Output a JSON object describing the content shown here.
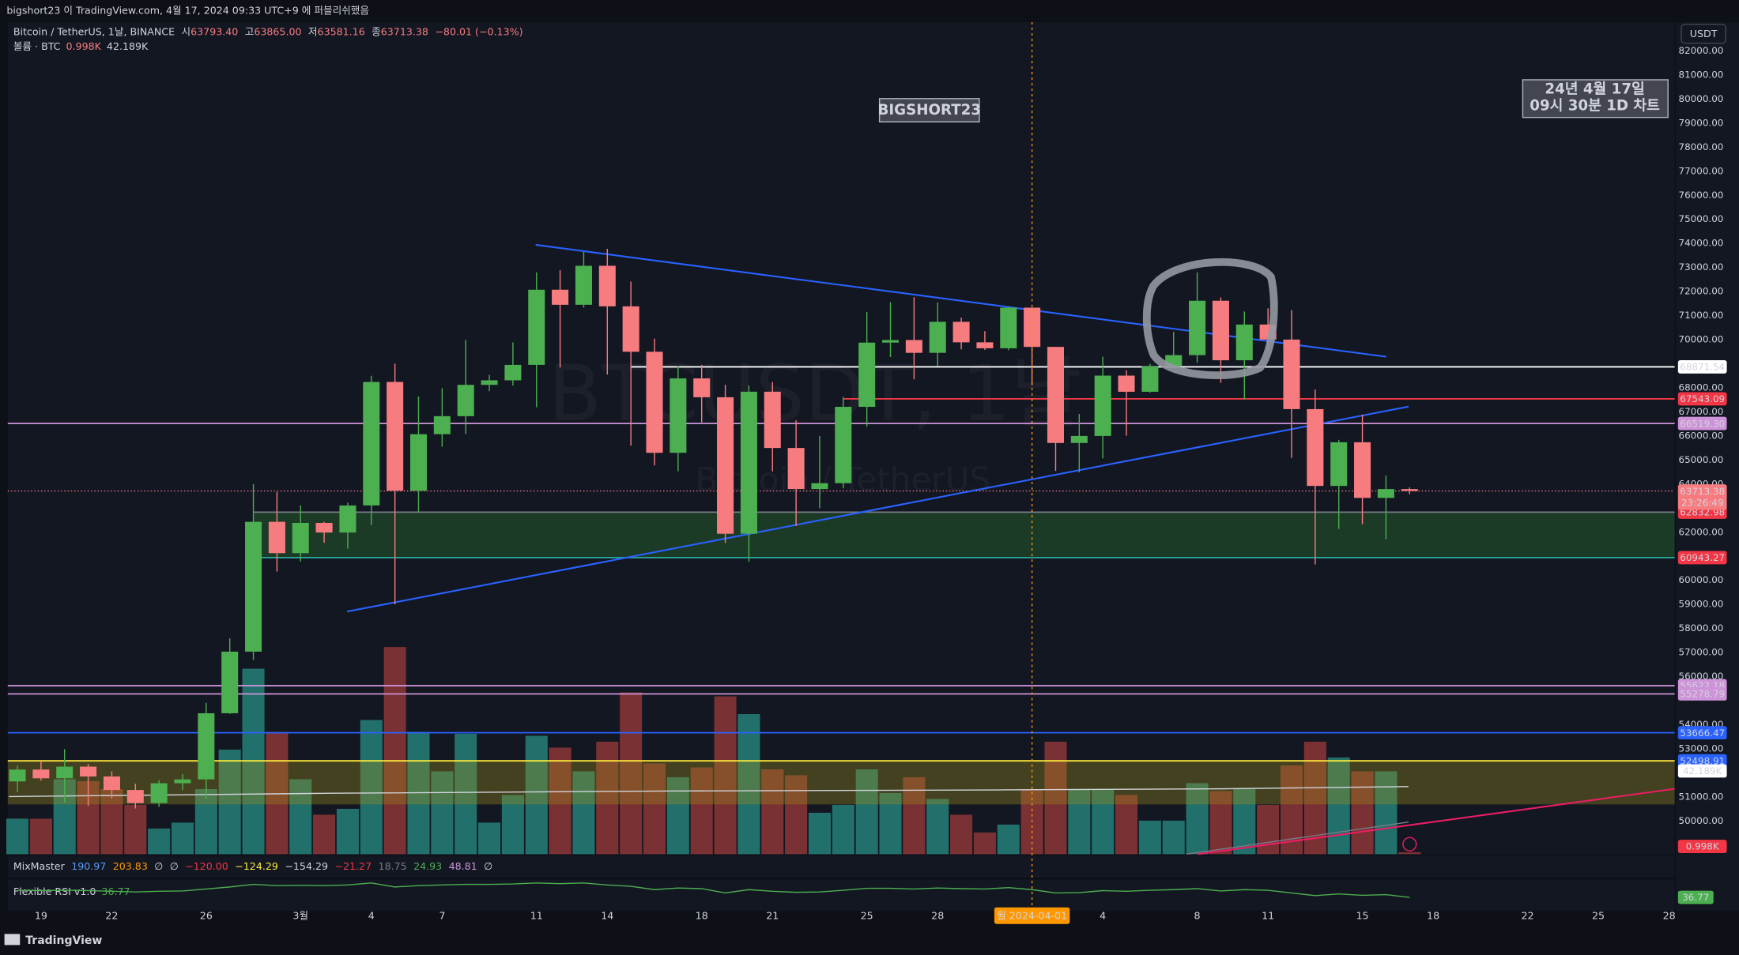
{
  "chart_data": {
    "type": "candlestick",
    "header": "bigshort23 이 TradingView.com, 4월 17, 2024 09:33 UTC+9 에 퍼블리쉬했음",
    "title": "Bitcoin / TetherUS, 1날, BINANCE",
    "ohlc_legend": [
      {
        "label": "시",
        "value": "63793.40"
      },
      {
        "label": "고",
        "value": "63865.00"
      },
      {
        "label": "저",
        "value": "63581.16"
      },
      {
        "label": "종",
        "value": "63713.38"
      }
    ],
    "change": "−80.01 (−0.13%)",
    "volume_legend": {
      "label": "볼륨 · BTC",
      "value": "0.998K",
      "ma": "42.189K"
    },
    "watermark": {
      "symbol": "BTCUSDT, 1날",
      "name": "Bitcoin / TetherUS"
    },
    "annotations": [
      "BIGSHORT23",
      "24년 4월 17일",
      "09시 30분 1D 차트"
    ],
    "currency_button": "USDT",
    "footer": "TradingView",
    "up_color": "#4caf50",
    "down_color": "#f77c80",
    "volume_up_color": "#22706b",
    "volume_down_color": "#7a3134",
    "x": [
      "2024-02-18",
      "2024-02-19",
      "2024-02-20",
      "2024-02-21",
      "2024-02-22",
      "2024-02-23",
      "2024-02-24",
      "2024-02-25",
      "2024-02-26",
      "2024-02-27",
      "2024-02-28",
      "2024-02-29",
      "2024-03-01",
      "2024-03-02",
      "2024-03-03",
      "2024-03-04",
      "2024-03-05",
      "2024-03-06",
      "2024-03-07",
      "2024-03-08",
      "2024-03-09",
      "2024-03-10",
      "2024-03-11",
      "2024-03-12",
      "2024-03-13",
      "2024-03-14",
      "2024-03-15",
      "2024-03-16",
      "2024-03-17",
      "2024-03-18",
      "2024-03-19",
      "2024-03-20",
      "2024-03-21",
      "2024-03-22",
      "2024-03-23",
      "2024-03-24",
      "2024-03-25",
      "2024-03-26",
      "2024-03-27",
      "2024-03-28",
      "2024-03-29",
      "2024-03-30",
      "2024-03-31",
      "2024-04-01",
      "2024-04-02",
      "2024-04-03",
      "2024-04-04",
      "2024-04-05",
      "2024-04-06",
      "2024-04-07",
      "2024-04-08",
      "2024-04-09",
      "2024-04-10",
      "2024-04-11",
      "2024-04-12",
      "2024-04-13",
      "2024-04-14",
      "2024-04-15",
      "2024-04-16",
      "2024-04-17"
    ],
    "open": [
      51643,
      52137,
      51774,
      52258,
      51849,
      51288,
      50744,
      51568,
      51728,
      54476,
      57037,
      62432,
      61130,
      62387,
      61987,
      63113,
      68245,
      63724,
      66074,
      66823,
      68124,
      68313,
      68955,
      72078,
      71452,
      73072,
      71388,
      69499,
      65300,
      68393,
      67609,
      61937,
      67840,
      65501,
      63796,
      64037,
      67211,
      69880,
      69987,
      69455,
      70744,
      69892,
      69645,
      71333,
      69702,
      65709,
      66000,
      68508,
      67837,
      68896,
      69360,
      71620,
      69146,
      70631,
      70006,
      67116,
      63924,
      65738,
      63426,
      63793.4
    ],
    "high": [
      52297,
      52488,
      52985,
      52371,
      52065,
      51548,
      51698,
      51950,
      54910,
      57588,
      64000,
      63676,
      63114,
      62433,
      63231,
      68499,
      69000,
      67637,
      67985,
      69990,
      68541,
      69887,
      72800,
      72890,
      73650,
      73777,
      72419,
      70043,
      68904,
      68956,
      68124,
      68100,
      68240,
      66650,
      65999,
      67622,
      71150,
      71561,
      71769,
      71552,
      70916,
      70355,
      71366,
      71342,
      69708,
      66914,
      69291,
      68725,
      69000,
      70326,
      72797,
      71758,
      71172,
      71305,
      71227,
      67932,
      65840,
      66878,
      64355,
      63865
    ],
    "low": [
      51200,
      51677,
      50760,
      50625,
      50940,
      50521,
      50585,
      51281,
      50901,
      54450,
      56691,
      60364,
      60777,
      61561,
      61320,
      62300,
      59005,
      62848,
      65551,
      66082,
      67861,
      68094,
      67194,
      68845,
      71334,
      68555,
      65600,
      64780,
      64533,
      66565,
      61555,
      60775,
      64529,
      62260,
      63000,
      63825,
      66385,
      69280,
      68359,
      68903,
      69601,
      69577,
      69562,
      68110,
      64550,
      64493,
      65064,
      66011,
      67800,
      68824,
      69043,
      68210,
      67518,
      69567,
      65086,
      60660,
      62134,
      62332,
      61716,
      63581.16
    ],
    "close": [
      52137,
      51774,
      52258,
      51849,
      51288,
      50744,
      51568,
      51728,
      54476,
      57037,
      62432,
      61130,
      62387,
      61987,
      63113,
      68245,
      63724,
      66074,
      66823,
      68124,
      68313,
      68955,
      72078,
      71452,
      73072,
      71388,
      69499,
      65300,
      68393,
      67609,
      61937,
      67840,
      65501,
      63796,
      64037,
      67211,
      69880,
      69987,
      69455,
      70744,
      69892,
      69645,
      71333,
      69702,
      65709,
      66000,
      68508,
      67837,
      68896,
      69360,
      71620,
      69146,
      70631,
      70006,
      67116,
      63924,
      65738,
      63426,
      63793.4,
      63713.38
    ],
    "volume": [
      18,
      18,
      38,
      37,
      33,
      25,
      13,
      16,
      33,
      53,
      94,
      62,
      38,
      20,
      23,
      68,
      105,
      62,
      42,
      61,
      16,
      30,
      60,
      54,
      42,
      57,
      82,
      46,
      39,
      44,
      80,
      71,
      43,
      40,
      21,
      25,
      43,
      31,
      39,
      28,
      20,
      11,
      15,
      33,
      57,
      33,
      33,
      30,
      17,
      17,
      36,
      32,
      33,
      25,
      45,
      57,
      49,
      42,
      42,
      0.998
    ],
    "volume_last_label": "0.998K",
    "volume_ma": {
      "value": 42.189,
      "label": "42.189K"
    },
    "rsi": [
      58,
      57,
      58,
      57,
      55,
      53,
      55,
      56,
      62,
      68,
      76,
      72,
      73,
      72,
      74,
      80,
      68,
      72,
      74,
      76,
      76,
      77,
      80,
      78,
      80,
      74,
      70,
      60,
      65,
      63,
      50,
      60,
      55,
      52,
      53,
      58,
      64,
      64,
      62,
      65,
      63,
      62,
      66,
      60,
      50,
      51,
      57,
      55,
      58,
      60,
      63,
      56,
      60,
      58,
      50,
      42,
      47,
      43,
      45,
      36.77
    ],
    "rsi_label": "36.77",
    "rsi_ylim": [
      0,
      100
    ],
    "rsi_color": "#4caf50",
    "mixmaster": {
      "name": "MixMaster",
      "values": [
        "190.97",
        "203.83",
        "∅",
        "∅",
        "−120.00",
        "−124.29",
        "−154.29",
        "−21.27",
        "18.75",
        "24.93",
        "48.81",
        "∅"
      ],
      "colors": [
        "#5b9cf6",
        "#ff9800",
        "#d1d4dc",
        "#d1d4dc",
        "#f23645",
        "#ffeb3b",
        "#d1d4dc",
        "#f23645",
        "#787b86",
        "#4caf50",
        "#ce93d8",
        "#d1d4dc"
      ]
    },
    "rsi_name": "Flexible RSI v1.0",
    "xlim": [
      "2024-02-18",
      "2024-04-28"
    ],
    "xticks": [
      {
        "value": "2024-02-19",
        "label": "19"
      },
      {
        "value": "2024-02-22",
        "label": "22"
      },
      {
        "value": "2024-02-26",
        "label": "26"
      },
      {
        "value": "2024-03-01",
        "label": "3월"
      },
      {
        "value": "2024-03-04",
        "label": "4"
      },
      {
        "value": "2024-03-07",
        "label": "7"
      },
      {
        "value": "2024-03-11",
        "label": "11"
      },
      {
        "value": "2024-03-14",
        "label": "14"
      },
      {
        "value": "2024-03-18",
        "label": "18"
      },
      {
        "value": "2024-03-21",
        "label": "21"
      },
      {
        "value": "2024-03-25",
        "label": "25"
      },
      {
        "value": "2024-03-28",
        "label": "28"
      },
      {
        "value": "2024-04-04",
        "label": "4"
      },
      {
        "value": "2024-04-08",
        "label": "8"
      },
      {
        "value": "2024-04-11",
        "label": "11"
      },
      {
        "value": "2024-04-15",
        "label": "15"
      },
      {
        "value": "2024-04-18",
        "label": "18"
      },
      {
        "value": "2024-04-22",
        "label": "22"
      },
      {
        "value": "2024-04-25",
        "label": "25"
      },
      {
        "value": "2024-04-28",
        "label": "28"
      }
    ],
    "crosshair": {
      "x": "2024-04-01",
      "label": "월 2024-04-01"
    },
    "ylim": [
      48620,
      83197
    ],
    "yticks": [
      {
        "value": 82000,
        "label": "82000.00"
      },
      {
        "value": 81000,
        "label": "81000.00"
      },
      {
        "value": 80000,
        "label": "80000.00"
      },
      {
        "value": 79000,
        "label": "79000.00"
      },
      {
        "value": 78000,
        "label": "78000.00"
      },
      {
        "value": 77000,
        "label": "77000.00"
      },
      {
        "value": 76000,
        "label": "76000.00"
      },
      {
        "value": 75000,
        "label": "75000.00"
      },
      {
        "value": 74000,
        "label": "74000.00"
      },
      {
        "value": 73000,
        "label": "73000.00"
      },
      {
        "value": 72000,
        "label": "72000.00"
      },
      {
        "value": 71000,
        "label": "71000.00"
      },
      {
        "value": 70000,
        "label": "70000.00"
      },
      {
        "value": 68000,
        "label": "68000.00"
      },
      {
        "value": 67000,
        "label": "67000.00"
      },
      {
        "value": 66000,
        "label": "66000.00"
      },
      {
        "value": 65000,
        "label": "65000.00"
      },
      {
        "value": 64000,
        "label": "64000.00"
      },
      {
        "value": 62000,
        "label": "62000.00"
      },
      {
        "value": 60000,
        "label": "60000.00"
      },
      {
        "value": 59000,
        "label": "59000.00"
      },
      {
        "value": 58000,
        "label": "58000.00"
      },
      {
        "value": 57000,
        "label": "57000.00"
      },
      {
        "value": 56000,
        "label": "56000.00"
      },
      {
        "value": 54000,
        "label": "54000.00"
      },
      {
        "value": 53000,
        "label": "53000.00"
      },
      {
        "value": 52000,
        "label": "52000.00"
      },
      {
        "value": 51000,
        "label": "51000.00"
      },
      {
        "value": 50000,
        "label": "50000.00"
      }
    ],
    "zones": [
      {
        "high": 62832.98,
        "low": 60943.27,
        "from": "2024-02-28",
        "color": "#2e7d32"
      },
      {
        "high": 52498.91,
        "low": 50690,
        "color": "#9e8f1a"
      }
    ],
    "price_lines": [
      {
        "value": 68871.54,
        "label": "68871.54",
        "color": "#ffffff",
        "badge": "#ffffff",
        "from": "2024-03-15"
      },
      {
        "value": 67543.09,
        "label": "67543.09",
        "color": "#f23645",
        "badge": "#f23645",
        "from": "2024-03-24"
      },
      {
        "value": 66519.3,
        "label": "66519.30",
        "color": "#ce93d8",
        "badge": "#ce93d8"
      },
      {
        "value": 62832.98,
        "label": "62832.98",
        "color": "#787b86",
        "badge": "#f23645",
        "from": "2024-02-28"
      },
      {
        "value": 60943.27,
        "label": "60943.27",
        "color": "#26a69a",
        "badge": "#f23645",
        "from": "2024-02-28"
      },
      {
        "value": 55622.18,
        "label": "55622.18",
        "color": "#ce93d8",
        "badge": "#ce93d8"
      },
      {
        "value": 55278.79,
        "label": "55278.79",
        "color": "#ce93d8",
        "badge": "#ce93d8"
      },
      {
        "value": 53666.47,
        "label": "53666.47",
        "color": "#2962ff",
        "badge": "#2962ff"
      },
      {
        "value": 52498.91,
        "label": "52498.91",
        "color": "#ffeb3b",
        "badge": "#2962ff"
      }
    ],
    "last_price": {
      "value": 63713.38,
      "label": "63713.38",
      "countdown": "23:26:49",
      "color": "#f77c80"
    }
  }
}
